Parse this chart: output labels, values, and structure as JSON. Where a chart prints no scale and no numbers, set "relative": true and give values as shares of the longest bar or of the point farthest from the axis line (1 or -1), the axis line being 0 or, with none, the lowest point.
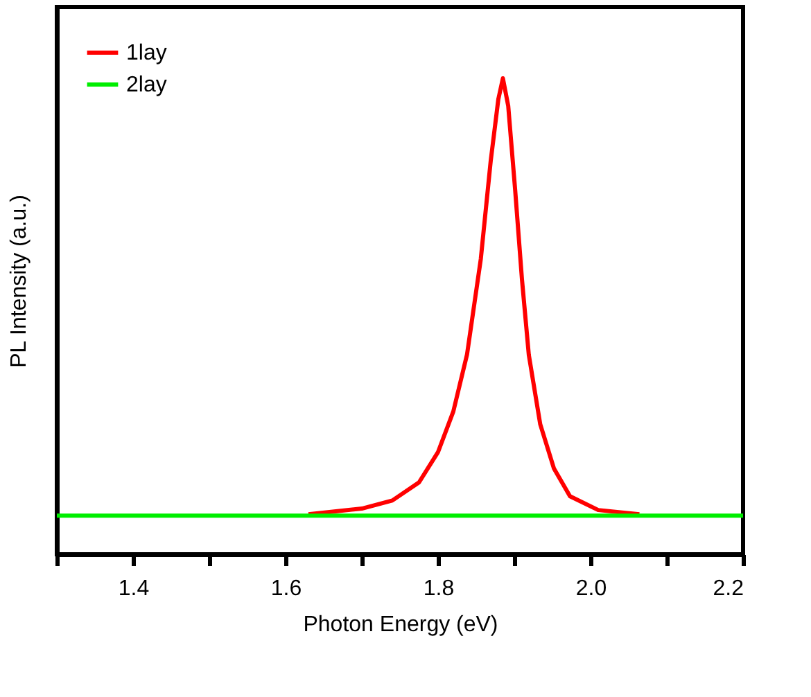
{
  "chart_data": {
    "type": "line",
    "relative": true,
    "xlabel": "Photon Energy (eV)",
    "ylabel": "PL Intensity (a.u.)",
    "xlim": [
      1.3,
      2.2
    ],
    "xticks": [
      {
        "value": 1.3,
        "label": null
      },
      1.4,
      {
        "value": 1.5,
        "label": null
      },
      1.6,
      {
        "value": 1.7,
        "label": null
      },
      1.8,
      {
        "value": 1.9,
        "label": null
      },
      {
        "value": 2.0,
        "label": "2.0"
      },
      {
        "value": 2.1,
        "label": null
      },
      2.2
    ],
    "legend": "top left",
    "grid": false,
    "marker": "none",
    "line_style": "solid",
    "series": [
      {
        "name": "1lay",
        "color": "#ff0000",
        "x": [
          1.63,
          1.7,
          1.74,
          1.775,
          1.8,
          1.82,
          1.838,
          1.856,
          1.869,
          1.879,
          1.885,
          1.892,
          1.901,
          1.91,
          1.919,
          1.934,
          1.952,
          1.973,
          2.01,
          2.064
        ],
        "values": [
          0.084,
          0.096,
          0.113,
          0.151,
          0.215,
          0.3,
          0.42,
          0.62,
          0.826,
          0.956,
          1.0,
          0.942,
          0.767,
          0.578,
          0.419,
          0.273,
          0.18,
          0.122,
          0.093,
          0.084
        ]
      },
      {
        "name": "2lay",
        "color": "#00ee00",
        "x": [
          1.3,
          2.2
        ],
        "values": [
          0.081,
          0.081
        ]
      }
    ]
  }
}
